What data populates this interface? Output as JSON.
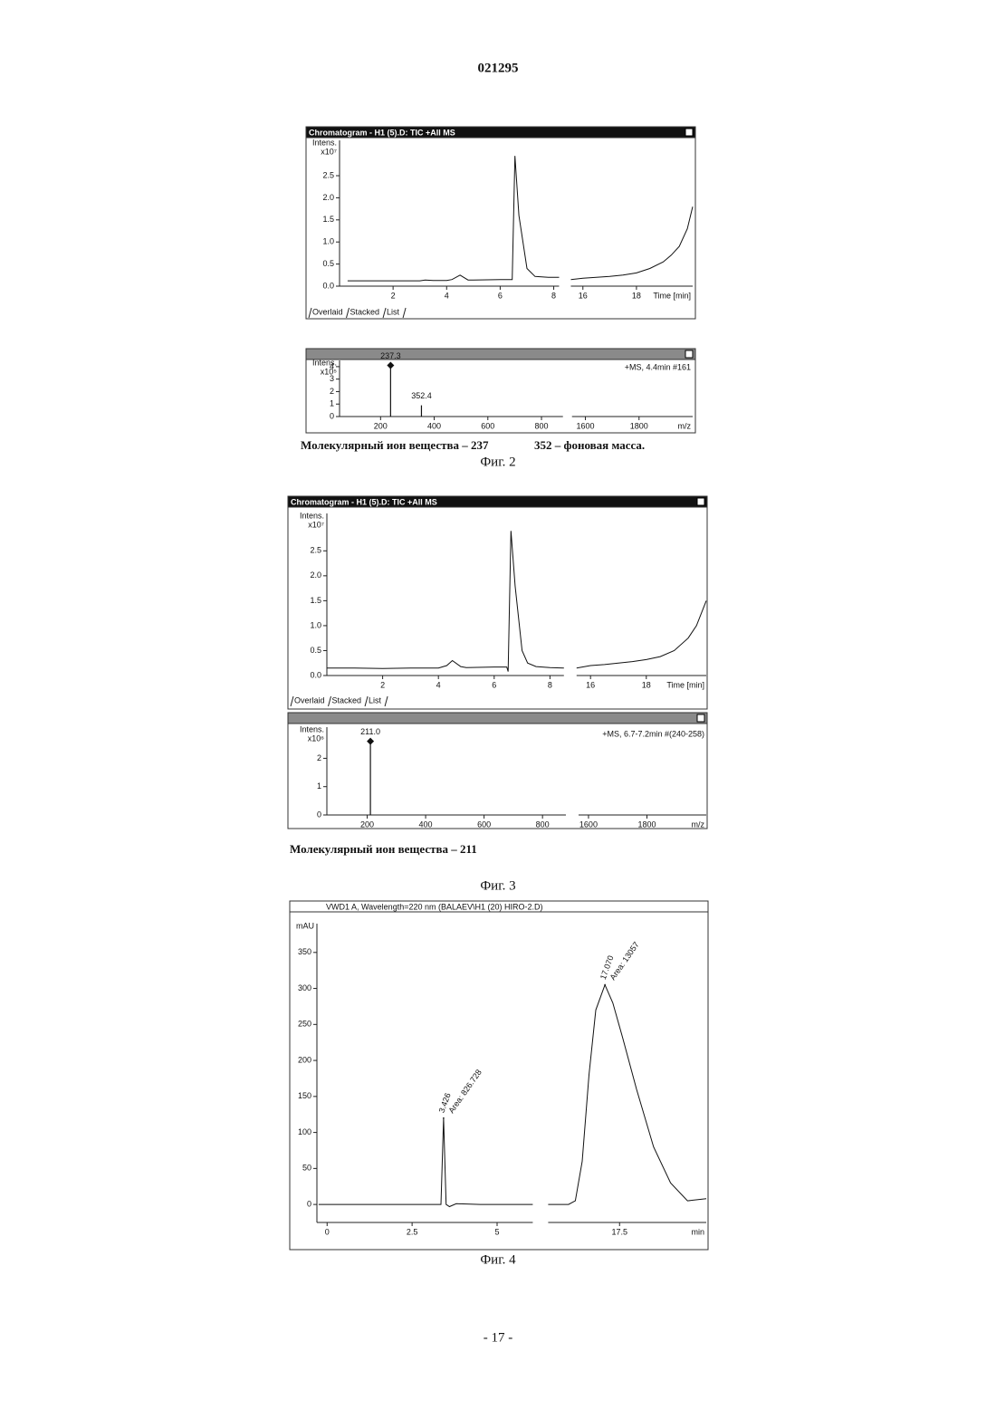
{
  "header": "021295",
  "footer": "- 17 -",
  "figures": [
    {
      "label": "Фиг. 2",
      "captions": [
        "Молекулярный ион вещества – 237",
        "352 – фоновая масса."
      ],
      "tabs": [
        "Overlaid",
        "Stacked",
        "List"
      ],
      "panels": [
        {
          "type": "line",
          "window_title": "Chromatogram - H1 (5).D: TIC +All MS",
          "y_label": "Intens.",
          "y_exponent": "x10⁷",
          "x_label": "Time [min]",
          "xlim_segments": [
            [
              0,
              8.2
            ],
            [
              15.55,
              20.1
            ]
          ],
          "ylim": [
            0,
            3.3
          ],
          "yticks": [
            {
              "value": 0,
              "label": "0.0"
            },
            0.5,
            {
              "value": 1,
              "label": "1.0"
            },
            1.5,
            {
              "value": 2,
              "label": "2.0"
            },
            2.5
          ],
          "xticks": [
            2,
            4,
            6,
            8,
            16,
            18
          ],
          "series": [
            {
              "x": [
                0.3,
                1,
                2,
                3,
                3.2,
                3.5,
                4,
                4.2,
                4.5,
                4.8,
                5,
                6,
                6.45,
                6.55,
                6.7,
                7,
                7.3,
                7.8,
                8.2,
                null,
                15.55,
                16,
                16.5,
                17,
                17.5,
                18,
                18.5,
                19,
                19.3,
                19.6,
                19.9,
                20.1
              ],
              "values": [
                0.12,
                0.12,
                0.12,
                0.12,
                0.14,
                0.13,
                0.13,
                0.15,
                0.25,
                0.14,
                0.14,
                0.15,
                0.15,
                2.95,
                1.6,
                0.4,
                0.22,
                0.2,
                0.2,
                null,
                0.15,
                0.18,
                0.2,
                0.22,
                0.25,
                0.3,
                0.4,
                0.55,
                0.7,
                0.9,
                1.3,
                1.8
              ]
            }
          ]
        },
        {
          "type": "stem",
          "y_label": "Intens.",
          "y_exponent": "x10⁵",
          "x_label": "m/z",
          "annotation": "+MS, 4.4min #161",
          "xlim_segments": [
            [
              47,
              880
            ],
            [
              1550,
              2000
            ]
          ],
          "ylim": [
            0,
            4.5
          ],
          "yticks": [
            0,
            1,
            2,
            3,
            4
          ],
          "xticks": [
            200,
            400,
            600,
            800,
            1600,
            1800
          ],
          "series": [
            {
              "x": [
                237.3,
                352.4
              ],
              "values": [
                4.1,
                0.9
              ],
              "labels": [
                "237.3",
                "352.4"
              ]
            }
          ]
        }
      ]
    },
    {
      "label": "Фиг. 3",
      "captions": [
        "Молекулярный ион вещества – 211"
      ],
      "tabs": [
        "Overlaid",
        "Stacked",
        "List"
      ],
      "panels": [
        {
          "type": "line",
          "window_title": "Chromatogram - H1 (5).D: TIC +All MS",
          "y_label": "Intens.",
          "y_exponent": "x10⁷",
          "x_label": "Time [min]",
          "xlim_segments": [
            [
              0,
              8.5
            ],
            [
              15.5,
              20.15
            ]
          ],
          "ylim": [
            0,
            3.25
          ],
          "yticks": [
            {
              "value": 0,
              "label": "0.0"
            },
            0.5,
            {
              "value": 1,
              "label": "1.0"
            },
            1.5,
            {
              "value": 2,
              "label": "2.0"
            },
            2.5
          ],
          "xticks": [
            2,
            4,
            6,
            8,
            16,
            18
          ],
          "series": [
            {
              "x": [
                0,
                1,
                2,
                3,
                4,
                4.3,
                4.5,
                4.8,
                5,
                6,
                6.45,
                6.5,
                6.6,
                6.75,
                7,
                7.2,
                7.5,
                8,
                8.5,
                null,
                15.5,
                16,
                16.5,
                17,
                17.5,
                18,
                18.5,
                19,
                19.5,
                19.8,
                20.15
              ],
              "values": [
                0.15,
                0.15,
                0.14,
                0.15,
                0.15,
                0.2,
                0.3,
                0.18,
                0.16,
                0.17,
                0.17,
                0.08,
                2.9,
                1.8,
                0.5,
                0.25,
                0.18,
                0.16,
                0.15,
                null,
                0.15,
                0.2,
                0.22,
                0.25,
                0.28,
                0.32,
                0.38,
                0.5,
                0.75,
                1.0,
                1.5
              ]
            }
          ]
        },
        {
          "type": "stem",
          "y_label": "Intens.",
          "y_exponent": "x10⁶",
          "x_label": "m/z",
          "annotation": "+MS, 6.7-7.2min #(240-258)",
          "xlim_segments": [
            [
              62,
              880
            ],
            [
              1566,
              2003
            ]
          ],
          "ylim": [
            0,
            3.1
          ],
          "yticks": [
            0,
            1,
            2
          ],
          "xticks": [
            200,
            400,
            600,
            800,
            1600,
            1800
          ],
          "series": [
            {
              "x": [
                211
              ],
              "values": [
                2.6
              ],
              "labels": [
                "211.0"
              ]
            }
          ]
        }
      ]
    },
    {
      "label": "Фиг. 4",
      "panels": [
        {
          "type": "line",
          "window_title": "VWD1 A, Wavelength=220 nm (BALAEV\\H1 (20) HIRO-2.D)",
          "y_label": "mAU",
          "x_label": "min",
          "xlim_segments": [
            [
              -0.3,
              6.05
            ],
            [
              15.4,
              20.05
            ]
          ],
          "ylim": [
            -25,
            390
          ],
          "yticks": [
            0,
            50,
            100,
            150,
            200,
            250,
            300,
            350
          ],
          "xticks": [
            0,
            2.5,
            5,
            17.5
          ],
          "series": [
            {
              "x": [
                -0.25,
                1,
                2,
                3,
                3.35,
                3.426,
                3.5,
                3.6,
                3.8,
                4.5,
                6.05,
                null,
                15.4,
                16,
                16.2,
                16.4,
                16.6,
                16.8,
                17.07,
                17.3,
                17.6,
                18,
                18.5,
                19,
                19.5,
                20.05
              ],
              "values": [
                0,
                0,
                0,
                0,
                0,
                120,
                0,
                -3,
                1,
                0,
                0,
                null,
                0,
                0,
                5,
                60,
                180,
                270,
                305,
                280,
                230,
                160,
                80,
                30,
                5,
                8
              ]
            }
          ],
          "peaks": [
            {
              "x": 3.426,
              "y": 120,
              "label": "3.426",
              "area": "Area: 826.728"
            },
            {
              "x": 17.07,
              "y": 305,
              "label": "17.070",
              "area": "Area: 13057"
            }
          ]
        }
      ]
    }
  ]
}
